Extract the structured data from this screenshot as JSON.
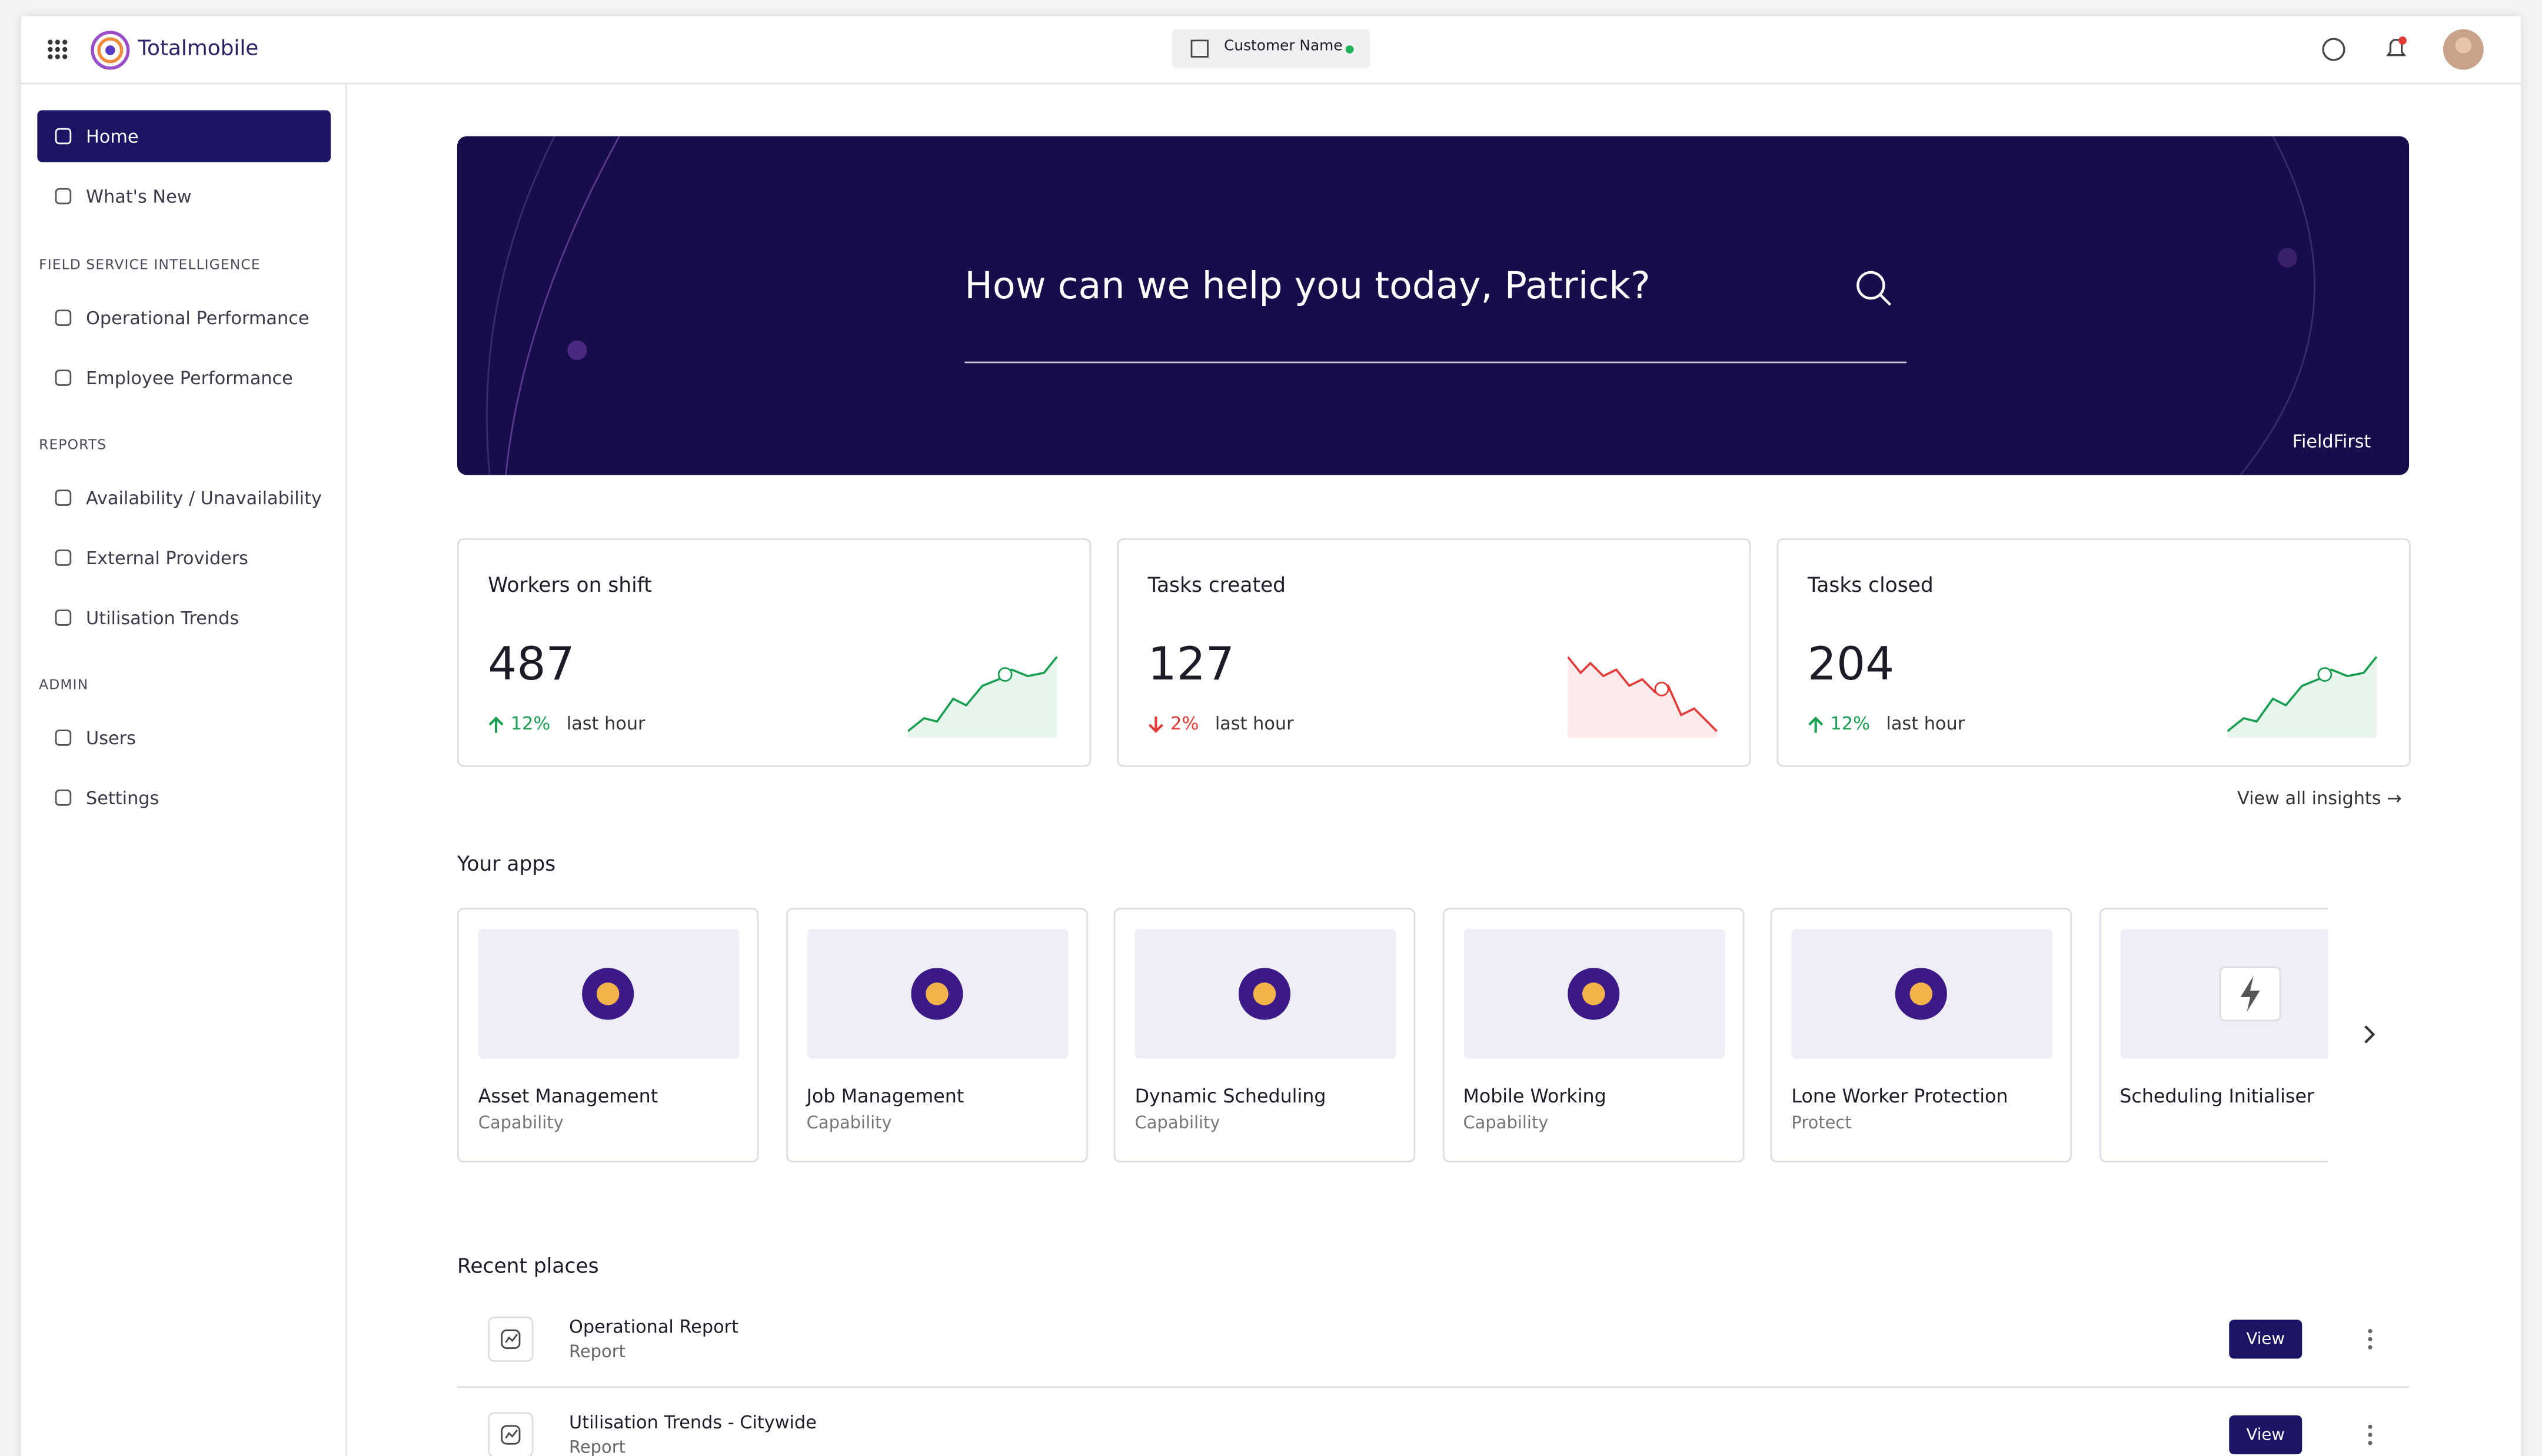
{
  "header": {
    "brand": "Totalmobile",
    "customer": "Customer Name"
  },
  "sidebar": {
    "top": [
      "Home",
      "What's New"
    ],
    "sections": [
      {
        "title": "FIELD SERVICE INTELLIGENCE",
        "items": [
          "Operational Performance",
          "Employee Performance"
        ]
      },
      {
        "title": "REPORTS",
        "items": [
          "Availability / Unavailability",
          "External Providers",
          "Utilisation Trends"
        ]
      },
      {
        "title": "ADMIN",
        "items": [
          "Users",
          "Settings"
        ]
      }
    ]
  },
  "hero": {
    "prompt": "How can we help you today, Patrick?",
    "logo": "FieldFirst"
  },
  "kpis": [
    {
      "title": "Workers on shift",
      "value": "487",
      "delta": "12%",
      "period": "last hour",
      "trend": "up"
    },
    {
      "title": "Tasks created",
      "value": "127",
      "delta": "2%",
      "period": "last hour",
      "trend": "down"
    },
    {
      "title": "Tasks closed",
      "value": "204",
      "delta": "12%",
      "period": "last hour",
      "trend": "up"
    }
  ],
  "insights_link": "View all insights",
  "apps": {
    "title": "Your apps",
    "items": [
      {
        "name": "Asset Management",
        "kind": "Capability"
      },
      {
        "name": "Job Management",
        "kind": "Capability"
      },
      {
        "name": "Dynamic Scheduling",
        "kind": "Capability"
      },
      {
        "name": "Mobile Working",
        "kind": "Capability"
      },
      {
        "name": "Lone Worker Protection",
        "kind": "Protect"
      },
      {
        "name": "Scheduling Initialiser"
      }
    ]
  },
  "recent": {
    "title": "Recent places",
    "items": [
      {
        "name": "Operational Report",
        "kind": "Report",
        "action": "View"
      },
      {
        "name": "Utilisation Trends - Citywide",
        "kind": "Report",
        "action": "View"
      }
    ]
  }
}
